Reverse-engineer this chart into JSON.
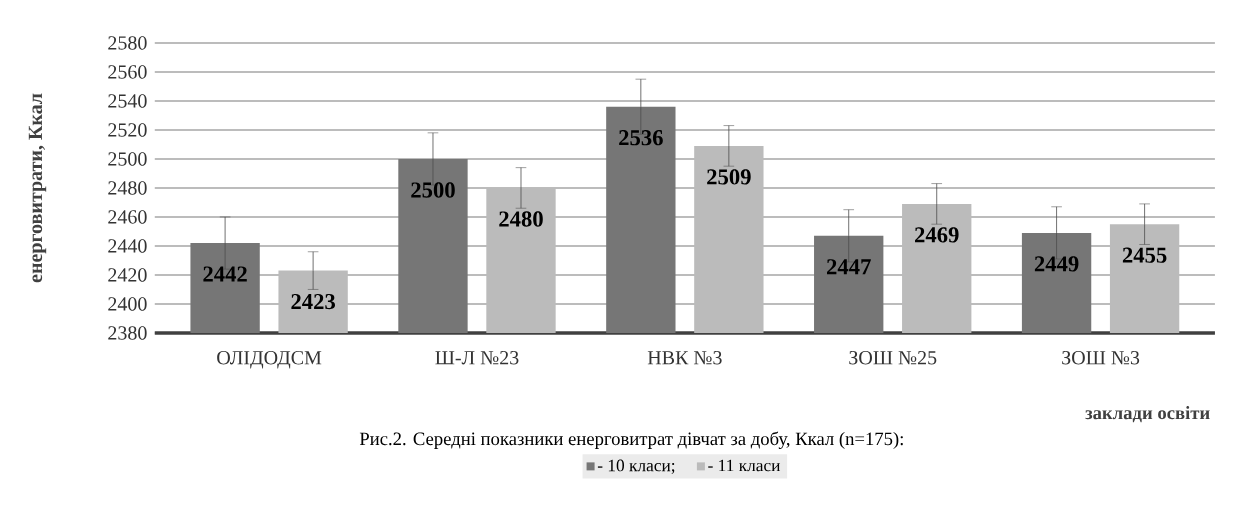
{
  "chart_data": {
    "type": "bar",
    "ylabel": "енерговитрати, Ккал",
    "xlabel": "заклади освіти",
    "annotations": [
      "Рис.2. Середні показники енерговитрат  дівчат за добу, Ккал (n=175):"
    ],
    "categories": [
      "ОЛІДОДСМ",
      "Ш-Л №23",
      "НВК №3",
      "ЗОШ №25",
      "ЗОШ №3"
    ],
    "series": [
      {
        "name": "- 10 класи;",
        "color": "#767676",
        "values": [
          2442,
          2500,
          2536,
          2447,
          2449
        ],
        "errors": [
          18,
          18,
          19,
          18,
          18
        ]
      },
      {
        "name": "- 11 класи",
        "color": "#bbbbbb",
        "values": [
          2423,
          2480,
          2509,
          2469,
          2455
        ],
        "errors": [
          13,
          14,
          14,
          14,
          14
        ]
      }
    ],
    "ylim": [
      2380,
      2580
    ],
    "yticks": [
      2380,
      2400,
      2420,
      2440,
      2460,
      2480,
      2500,
      2520,
      2540,
      2560,
      2580
    ],
    "grid": "y",
    "legend": "bottom",
    "data_labels": true
  }
}
